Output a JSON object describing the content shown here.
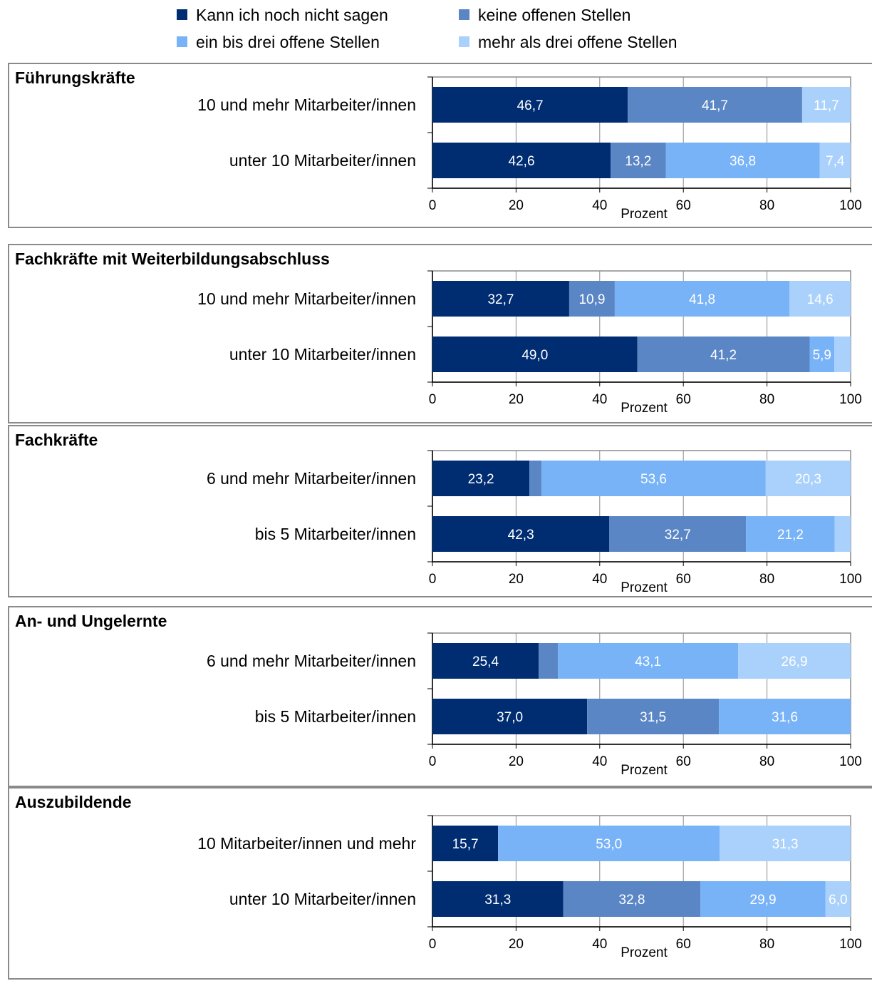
{
  "legend": [
    {
      "label": "Kann ich noch nicht sagen",
      "color": "#002d72"
    },
    {
      "label": "keine offenen Stellen",
      "color": "#5b86c5"
    },
    {
      "label": "ein bis drei offene Stellen",
      "color": "#78b2f7"
    },
    {
      "label": "mehr als drei offene Stellen",
      "color": "#a9d1fb"
    }
  ],
  "chart_data": [
    {
      "type": "bar",
      "orientation": "horizontal",
      "stacked": true,
      "title": "Führungskräfte",
      "xlabel": "Prozent",
      "xlim": [
        0,
        100
      ],
      "xticks": [
        0,
        20,
        40,
        60,
        80,
        100
      ],
      "grid": true,
      "categories": [
        "10 und mehr Mitarbeiter/innen",
        "unter 10 Mitarbeiter/innen"
      ],
      "series": [
        {
          "name": "Kann ich noch nicht sagen",
          "values": [
            46.7,
            42.6
          ],
          "labels": [
            "46,7",
            "42,6"
          ]
        },
        {
          "name": "keine offenen Stellen",
          "values": [
            41.7,
            13.2
          ],
          "labels": [
            "41,7",
            "13,2"
          ]
        },
        {
          "name": "ein bis drei offene Stellen",
          "values": [
            0,
            36.8
          ],
          "labels": [
            "",
            "36,8"
          ]
        },
        {
          "name": "mehr als drei offene Stellen",
          "values": [
            11.7,
            7.4
          ],
          "labels": [
            "11,7",
            "7,4"
          ]
        }
      ]
    },
    {
      "type": "bar",
      "orientation": "horizontal",
      "stacked": true,
      "title": "Fachkräfte mit Weiterbildungsabschluss",
      "xlabel": "Prozent",
      "xlim": [
        0,
        100
      ],
      "xticks": [
        0,
        20,
        40,
        60,
        80,
        100
      ],
      "grid": true,
      "categories": [
        "10 und mehr Mitarbeiter/innen",
        "unter 10 Mitarbeiter/innen"
      ],
      "series": [
        {
          "name": "Kann ich noch nicht sagen",
          "values": [
            32.7,
            49.0
          ],
          "labels": [
            "32,7",
            "49,0"
          ]
        },
        {
          "name": "keine offenen Stellen",
          "values": [
            10.9,
            41.2
          ],
          "labels": [
            "10,9",
            "41,2"
          ]
        },
        {
          "name": "ein bis drei offene Stellen",
          "values": [
            41.8,
            5.9
          ],
          "labels": [
            "41,8",
            "5,9"
          ]
        },
        {
          "name": "mehr als drei offene Stellen",
          "values": [
            14.6,
            3.9
          ],
          "labels": [
            "14,6",
            ""
          ]
        }
      ]
    },
    {
      "type": "bar",
      "orientation": "horizontal",
      "stacked": true,
      "title": "Fachkräfte",
      "xlabel": "Prozent",
      "xlim": [
        0,
        100
      ],
      "xticks": [
        0,
        20,
        40,
        60,
        80,
        100
      ],
      "grid": true,
      "categories": [
        "6 und mehr Mitarbeiter/innen",
        "bis 5 Mitarbeiter/innen"
      ],
      "series": [
        {
          "name": "Kann ich noch nicht sagen",
          "values": [
            23.2,
            42.3
          ],
          "labels": [
            "23,2",
            "42,3"
          ]
        },
        {
          "name": "keine offenen Stellen",
          "values": [
            2.9,
            32.7
          ],
          "labels": [
            "",
            "32,7"
          ]
        },
        {
          "name": "ein bis drei offene Stellen",
          "values": [
            53.6,
            21.2
          ],
          "labels": [
            "53,6",
            "21,2"
          ]
        },
        {
          "name": "mehr als drei offene Stellen",
          "values": [
            20.3,
            3.8
          ],
          "labels": [
            "20,3",
            ""
          ]
        }
      ]
    },
    {
      "type": "bar",
      "orientation": "horizontal",
      "stacked": true,
      "title": "An- und Ungelernte",
      "xlabel": "Prozent",
      "xlim": [
        0,
        100
      ],
      "xticks": [
        0,
        20,
        40,
        60,
        80,
        100
      ],
      "grid": true,
      "categories": [
        "6 und mehr Mitarbeiter/innen",
        "bis 5 Mitarbeiter/innen"
      ],
      "series": [
        {
          "name": "Kann ich noch nicht sagen",
          "values": [
            25.4,
            37.0
          ],
          "labels": [
            "25,4",
            "37,0"
          ]
        },
        {
          "name": "keine offenen Stellen",
          "values": [
            4.6,
            31.5
          ],
          "labels": [
            "",
            "31,5"
          ]
        },
        {
          "name": "ein bis drei offene Stellen",
          "values": [
            43.1,
            31.6
          ],
          "labels": [
            "43,1",
            "31,6"
          ]
        },
        {
          "name": "mehr als drei offene Stellen",
          "values": [
            26.9,
            0
          ],
          "labels": [
            "26,9",
            ""
          ]
        }
      ]
    },
    {
      "type": "bar",
      "orientation": "horizontal",
      "stacked": true,
      "title": "Auszubildende",
      "xlabel": "Prozent",
      "xlim": [
        0,
        100
      ],
      "xticks": [
        0,
        20,
        40,
        60,
        80,
        100
      ],
      "grid": true,
      "categories": [
        "10 Mitarbeiter/innen und mehr",
        "unter 10 Mitarbeiter/innen"
      ],
      "series": [
        {
          "name": "Kann ich noch nicht sagen",
          "values": [
            15.7,
            31.3
          ],
          "labels": [
            "15,7",
            "31,3"
          ]
        },
        {
          "name": "keine offenen Stellen",
          "values": [
            0,
            32.8
          ],
          "labels": [
            "",
            "32,8"
          ]
        },
        {
          "name": "ein bis drei offene Stellen",
          "values": [
            53.0,
            29.9
          ],
          "labels": [
            "53,0",
            "29,9"
          ]
        },
        {
          "name": "mehr als drei offene Stellen",
          "values": [
            31.3,
            6.0
          ],
          "labels": [
            "31,3",
            "6,0"
          ]
        }
      ]
    }
  ]
}
